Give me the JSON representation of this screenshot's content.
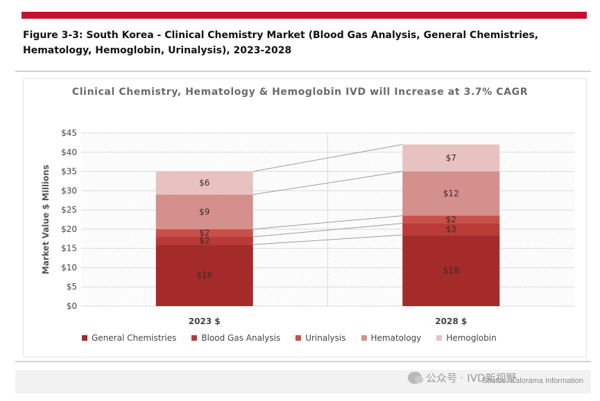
{
  "figure_caption": "Figure 3-3: South Korea - Clinical Chemistry Market (Blood Gas Analysis, General Chemistries, Hematology, Hemoglobin, Urinalysis), 2023-2028",
  "watermark": "公众号 · IVD新视野",
  "source": "Source: Kalorama Information",
  "chart_data": {
    "type": "bar",
    "stacked": true,
    "title": "Clinical Chemistry, Hematology & Hemoglobin IVD will Increase at 3.7% CAGR",
    "ylabel": "Market Value $ Millions",
    "xlabel": "",
    "categories": [
      "2023 $",
      "2028 $"
    ],
    "ylim": [
      0,
      45
    ],
    "yticks": [
      "$0",
      "$5",
      "$10",
      "$15",
      "$20",
      "$25",
      "$30",
      "$35",
      "$40",
      "$45"
    ],
    "grid": true,
    "legend_position": "bottom",
    "series": [
      {
        "name": "General Chemistries",
        "color": "#a52a2a",
        "values": [
          16,
          18.5
        ],
        "labels": [
          "$16",
          "$18"
        ]
      },
      {
        "name": "Blood Gas Analysis",
        "color": "#b93a36",
        "values": [
          2,
          3
        ],
        "labels": [
          "$2",
          "$3"
        ]
      },
      {
        "name": "Urinalysis",
        "color": "#c9504a",
        "values": [
          2,
          2
        ],
        "labels": [
          "$2",
          "$2"
        ]
      },
      {
        "name": "Hematology",
        "color": "#d4908c",
        "values": [
          9,
          11.5
        ],
        "labels": [
          "$9",
          "$12"
        ]
      },
      {
        "name": "Hemoglobin",
        "color": "#e8c2c0",
        "values": [
          6,
          7
        ],
        "labels": [
          "$6",
          "$7"
        ]
      }
    ]
  }
}
